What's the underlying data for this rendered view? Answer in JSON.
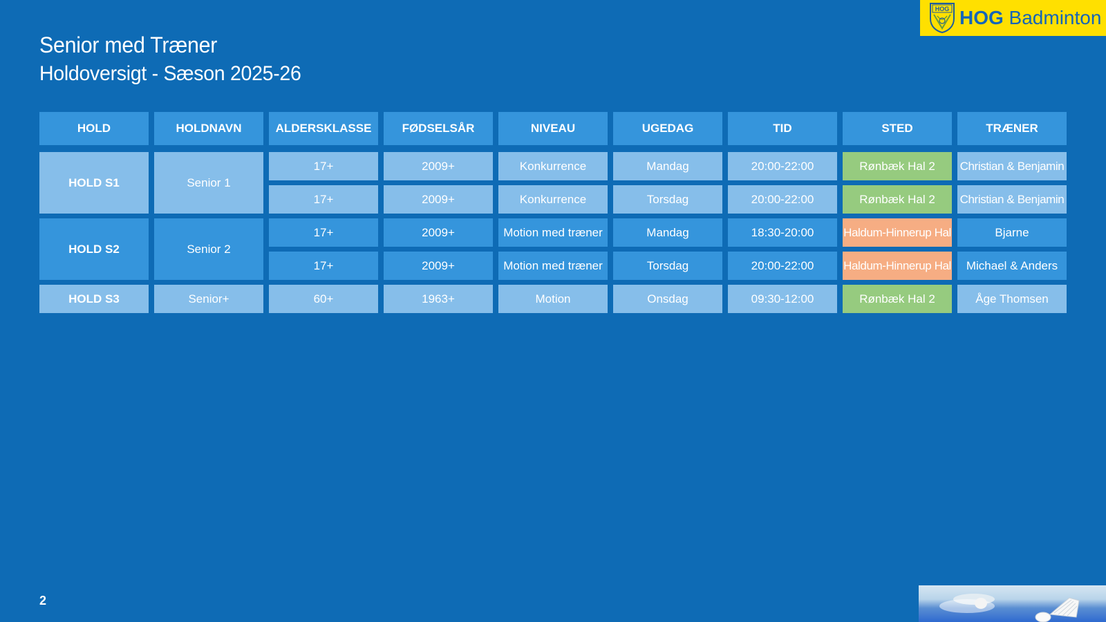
{
  "title": "Senior med Træner",
  "subtitle": "Holdoversigt - Sæson 2025-26",
  "logo": {
    "bold": "HOG",
    "rest": " Badminton",
    "emblem_text": "HOG",
    "background": "#ffe000",
    "text_color": "#1565b8"
  },
  "table": {
    "headers": [
      "HOLD",
      "HOLDNAVN",
      "ALDERSKLASSE",
      "FØDSELSÅR",
      "NIVEAU",
      "UGEDAG",
      "TID",
      "STED",
      "TRÆNER"
    ],
    "groups": [
      {
        "hold": "HOLD S1",
        "holdnavn": "Senior 1",
        "style": "light"
      },
      {
        "hold": "HOLD S2",
        "holdnavn": "Senior 2",
        "style": "blue"
      },
      {
        "hold": "HOLD S3",
        "holdnavn": "Senior+",
        "style": "light"
      }
    ],
    "rows": [
      {
        "alder": "17+",
        "aar": "2009+",
        "niveau": "Konkurrence",
        "ugedag": "Mandag",
        "tid": "20:00-22:00",
        "sted": "Rønbæk Hal 2",
        "traener": "Christian & Benjamin"
      },
      {
        "alder": "17+",
        "aar": "2009+",
        "niveau": "Konkurrence",
        "ugedag": "Torsdag",
        "tid": "20:00-22:00",
        "sted": "Rønbæk Hal 2",
        "traener": "Christian & Benjamin"
      },
      {
        "alder": "17+",
        "aar": "2009+",
        "niveau": "Motion med træner",
        "ugedag": "Mandag",
        "tid": "18:30-20:00",
        "sted": "Haldum-Hinnerup Hal",
        "traener": "Bjarne"
      },
      {
        "alder": "17+",
        "aar": "2009+",
        "niveau": "Motion med træner",
        "ugedag": "Torsdag",
        "tid": "20:00-22:00",
        "sted": "Haldum-Hinnerup Hal",
        "traener": "Michael & Anders"
      },
      {
        "alder": "60+",
        "aar": "1963+",
        "niveau": "Motion",
        "ugedag": "Onsdag",
        "tid": "09:30-12:00",
        "sted": "Rønbæk Hal 2",
        "traener": "Åge Thomsen"
      }
    ]
  },
  "colors": {
    "background": "#0e6bb5",
    "header_cell": "#3595dc",
    "light_cell": "#86beea",
    "location_ronbaek": "#96cb7f",
    "location_haldum": "#f6ad83"
  },
  "page_number": "2"
}
